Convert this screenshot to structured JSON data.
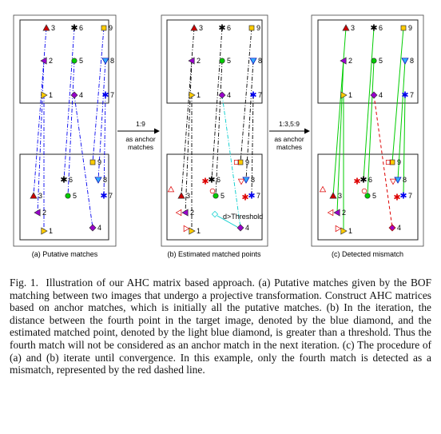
{
  "figure": {
    "panels": [
      {
        "id": "a",
        "caption": "(a) Putative matches",
        "annotation": ""
      },
      {
        "id": "b",
        "caption": "(b) Estimated matched points",
        "annotation": "d>Threshold"
      },
      {
        "id": "c",
        "caption": "(c) Detected mismatch",
        "annotation": ""
      }
    ],
    "arrows": [
      {
        "lines": [
          "1:9",
          "as anchor",
          "matches"
        ]
      },
      {
        "lines": [
          "1:3,5:9",
          "as anchor",
          "matches"
        ]
      }
    ],
    "point_labels": [
      "1",
      "2",
      "3",
      "4",
      "5",
      "6",
      "7",
      "8",
      "9"
    ],
    "colors": {
      "triangle_up": "#cc0000",
      "triangle_left": "#9900cc",
      "triangle_right": "#ffcc00",
      "diamond": "#9900cc",
      "blue": "#0000ee",
      "light_blue": "#00cccc",
      "green": "#00cc00",
      "red": "#dd0000"
    }
  },
  "caption": {
    "label": "Fig. 1.",
    "text": "Illustration of our AHC matrix based approach. (a) Putative matches given by the BOF matching between two images that undergo a projective transformation. Construct AHC matrices based on anchor matches, which is initially all the putative matches. (b) In the iteration, the distance between the fourth point in the target image, denoted by the blue diamond, and the estimated matched point, denoted by the light blue diamond, is greater than a threshold. Thus the fourth match will not be considered as an anchor match in the next iteration. (c) The procedure of (a) and (b) iterate until convergence. In this example, only the fourth match is detected as a mismatch, represented by the red dashed line."
  }
}
